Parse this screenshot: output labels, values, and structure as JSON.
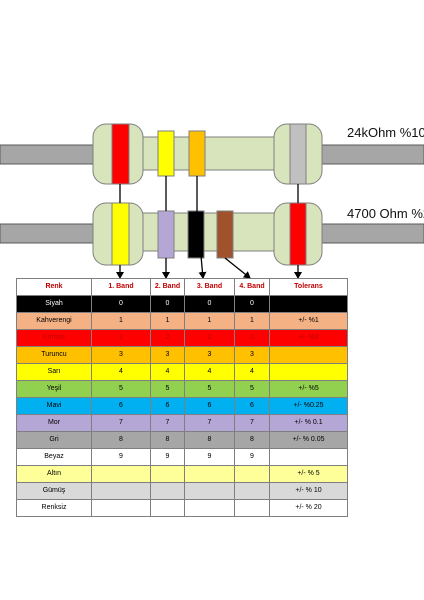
{
  "resistor1_label": "24kOhm %10",
  "resistor2_label": "4700 Ohm %2",
  "resistor1_bands": [
    "#ff0000",
    "#ffff00",
    "#ffc000",
    "#c0c0c0"
  ],
  "resistor2_bands": [
    "#ffff00",
    "#b4a7d6",
    "#000000",
    "#a0522d",
    "#ff0000"
  ],
  "body_color": "#d8e4bc",
  "lead_color": "#a6a6a6",
  "table": {
    "headers": [
      "Renk",
      "1. Band",
      "2. Band",
      "3. Band",
      "4. Band",
      "Tolerans"
    ],
    "rows": [
      {
        "name": "Siyah",
        "vals": [
          "0",
          "0",
          "0",
          "0"
        ],
        "tol": "",
        "bg": "#000000",
        "fg": "#ffffff"
      },
      {
        "name": "Kahverengi",
        "vals": [
          "1",
          "1",
          "1",
          "1"
        ],
        "tol": "+/- %1",
        "bg": "#f4b183",
        "fg": "#000000"
      },
      {
        "name": "Kırmızı",
        "vals": [
          "2",
          "2",
          "2",
          "2"
        ],
        "tol": "+/- %2",
        "bg": "#ff0000",
        "fg": "#c00000"
      },
      {
        "name": "Turuncu",
        "vals": [
          "3",
          "3",
          "3",
          "3"
        ],
        "tol": "",
        "bg": "#ffc000",
        "fg": "#000000"
      },
      {
        "name": "Sarı",
        "vals": [
          "4",
          "4",
          "4",
          "4"
        ],
        "tol": "",
        "bg": "#ffff00",
        "fg": "#000000"
      },
      {
        "name": "Yeşil",
        "vals": [
          "5",
          "5",
          "5",
          "5"
        ],
        "tol": "+/- %5",
        "bg": "#92d050",
        "fg": "#000000"
      },
      {
        "name": "Mavi",
        "vals": [
          "6",
          "6",
          "6",
          "6"
        ],
        "tol": "+/- %0.25",
        "bg": "#00b0f0",
        "fg": "#000000"
      },
      {
        "name": "Mor",
        "vals": [
          "7",
          "7",
          "7",
          "7"
        ],
        "tol": "+/- % 0.1",
        "bg": "#b4a7d6",
        "fg": "#000000"
      },
      {
        "name": "Gri",
        "vals": [
          "8",
          "8",
          "8",
          "8"
        ],
        "tol": "+/- % 0.05",
        "bg": "#a6a6a6",
        "fg": "#000000"
      },
      {
        "name": "Beyaz",
        "vals": [
          "9",
          "9",
          "9",
          "9"
        ],
        "tol": "",
        "bg": "#ffffff",
        "fg": "#000000"
      },
      {
        "name": "Altın",
        "vals": [
          "",
          "",
          "",
          ""
        ],
        "tol": "+/- % 5",
        "bg": "#ffff99",
        "fg": "#000000"
      },
      {
        "name": "Gümüş",
        "vals": [
          "",
          "",
          "",
          ""
        ],
        "tol": "+/- % 10",
        "bg": "#d9d9d9",
        "fg": "#000000"
      },
      {
        "name": "Renksiz",
        "vals": [
          "",
          "",
          "",
          ""
        ],
        "tol": "+/- % 20",
        "bg": "#ffffff",
        "fg": "#000000"
      }
    ]
  }
}
